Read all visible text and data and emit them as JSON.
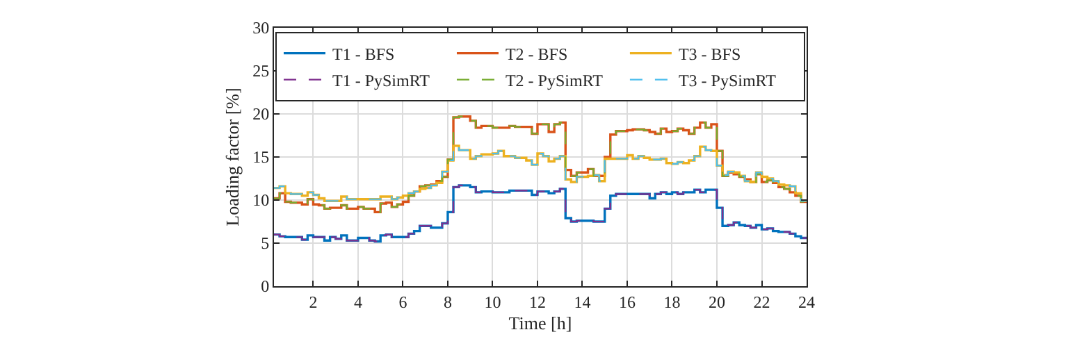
{
  "chart_data": {
    "type": "step",
    "xlabel": "Time [h]",
    "ylabel": "Loading factor [%]",
    "x": [
      0.25,
      0.5,
      0.75,
      1,
      1.25,
      1.5,
      1.75,
      2,
      2.25,
      2.5,
      2.75,
      3,
      3.25,
      3.5,
      3.75,
      4,
      4.25,
      4.5,
      4.75,
      5,
      5.25,
      5.5,
      5.75,
      6,
      6.25,
      6.5,
      6.75,
      7,
      7.25,
      7.5,
      7.75,
      8,
      8.25,
      8.5,
      8.75,
      9,
      9.25,
      9.5,
      9.75,
      10,
      10.25,
      10.5,
      10.75,
      11,
      11.25,
      11.5,
      11.75,
      12,
      12.25,
      12.5,
      12.75,
      13,
      13.25,
      13.5,
      13.75,
      14,
      14.25,
      14.5,
      14.75,
      15,
      15.25,
      15.5,
      15.75,
      16,
      16.25,
      16.5,
      16.75,
      17,
      17.25,
      17.5,
      17.75,
      18,
      18.25,
      18.5,
      18.75,
      19,
      19.25,
      19.5,
      19.75,
      20,
      20.25,
      20.5,
      20.75,
      21,
      21.25,
      21.5,
      21.75,
      22,
      22.25,
      22.5,
      22.75,
      23,
      23.25,
      23.5,
      23.75,
      24
    ],
    "series": [
      {
        "name": "T1 - BFS",
        "color": "#0072bd",
        "line_style": "solid",
        "values": [
          6.0,
          5.8,
          5.7,
          5.7,
          5.7,
          5.4,
          5.9,
          5.7,
          5.7,
          5.3,
          5.7,
          5.5,
          5.9,
          5.3,
          5.3,
          5.6,
          5.6,
          5.3,
          5.2,
          5.9,
          6.0,
          5.7,
          5.7,
          5.7,
          6.1,
          6.4,
          7.0,
          7.0,
          6.8,
          6.8,
          7.3,
          8.6,
          11.5,
          11.7,
          11.7,
          11.5,
          10.9,
          11.0,
          11.0,
          10.9,
          10.9,
          10.9,
          11.1,
          11.1,
          11.1,
          11.1,
          10.6,
          11.0,
          11.0,
          10.8,
          11.0,
          11.3,
          7.9,
          7.5,
          7.6,
          7.6,
          7.6,
          7.5,
          7.5,
          9.0,
          10.5,
          10.7,
          10.7,
          10.7,
          10.7,
          10.7,
          10.7,
          10.2,
          10.7,
          10.9,
          10.7,
          10.9,
          10.7,
          10.9,
          10.9,
          11.2,
          10.9,
          11.2,
          11.2,
          9.1,
          7.0,
          7.1,
          7.4,
          7.1,
          7.0,
          6.8,
          7.1,
          6.6,
          6.7,
          6.4,
          6.3,
          6.3,
          6.1,
          5.8,
          5.6,
          5.6
        ]
      },
      {
        "name": "T2 - BFS",
        "color": "#d95319",
        "line_style": "solid",
        "values": [
          10.2,
          10.8,
          9.8,
          9.7,
          9.7,
          9.5,
          10.1,
          9.5,
          9.4,
          9.0,
          9.1,
          9.1,
          9.4,
          9.0,
          9.0,
          9.2,
          9.0,
          9.0,
          8.6,
          9.6,
          9.7,
          9.2,
          9.5,
          9.8,
          10.5,
          11.0,
          11.6,
          11.7,
          11.8,
          12.2,
          12.7,
          14.7,
          19.6,
          19.7,
          19.7,
          19.2,
          18.4,
          18.6,
          18.6,
          18.4,
          18.4,
          18.4,
          18.6,
          18.5,
          18.5,
          18.5,
          17.7,
          18.8,
          18.8,
          17.9,
          18.8,
          19.0,
          13.5,
          12.8,
          13.2,
          13.2,
          13.6,
          12.8,
          12.8,
          15.0,
          17.6,
          18.0,
          18.0,
          18.1,
          18.2,
          18.2,
          18.1,
          17.9,
          17.7,
          18.3,
          17.9,
          18.0,
          18.3,
          18.1,
          17.7,
          18.4,
          19.0,
          18.4,
          18.8,
          15.7,
          12.8,
          13.2,
          13.0,
          12.7,
          12.4,
          12.1,
          13.0,
          12.1,
          12.3,
          12.0,
          11.5,
          11.3,
          10.9,
          10.5,
          9.8,
          9.8
        ]
      },
      {
        "name": "T3 - BFS",
        "color": "#edb120",
        "line_style": "solid",
        "values": [
          11.4,
          11.6,
          10.8,
          10.7,
          10.7,
          10.5,
          10.9,
          10.6,
          10.2,
          9.9,
          9.9,
          9.9,
          10.4,
          10.1,
          10.1,
          10.1,
          10.1,
          10.1,
          10.1,
          10.4,
          10.4,
          10.1,
          10.3,
          10.5,
          10.8,
          11.0,
          11.3,
          11.4,
          11.7,
          12.0,
          13.3,
          14.6,
          16.3,
          15.8,
          15.8,
          14.8,
          15.1,
          15.3,
          15.3,
          15.4,
          15.7,
          15.1,
          15.1,
          14.9,
          14.9,
          14.6,
          14.1,
          15.4,
          15.1,
          14.5,
          14.8,
          15.1,
          12.4,
          12.1,
          12.7,
          12.7,
          12.8,
          12.9,
          12.2,
          14.8,
          14.8,
          14.8,
          14.8,
          15.2,
          14.8,
          15.1,
          14.9,
          14.7,
          14.7,
          14.8,
          14.3,
          14.2,
          14.4,
          14.3,
          14.6,
          15.1,
          16.2,
          15.8,
          15.7,
          14.0,
          12.9,
          13.3,
          13.2,
          12.8,
          12.2,
          12.1,
          13.2,
          12.7,
          12.5,
          12.2,
          11.8,
          11.7,
          11.6,
          10.8,
          9.9,
          9.9
        ]
      },
      {
        "name": "T1 - PySimRT",
        "color": "#7e2f8e",
        "line_style": "dashed",
        "values": [
          6.0,
          5.8,
          5.7,
          5.7,
          5.7,
          5.4,
          5.9,
          5.7,
          5.7,
          5.3,
          5.7,
          5.5,
          5.9,
          5.3,
          5.3,
          5.6,
          5.6,
          5.3,
          5.2,
          5.9,
          6.0,
          5.7,
          5.7,
          5.7,
          6.1,
          6.4,
          7.0,
          7.0,
          6.8,
          6.8,
          7.3,
          8.6,
          11.5,
          11.7,
          11.7,
          11.5,
          10.9,
          11.0,
          11.0,
          10.9,
          10.9,
          10.9,
          11.1,
          11.1,
          11.1,
          11.1,
          10.6,
          11.0,
          11.0,
          10.8,
          11.0,
          11.3,
          7.9,
          7.5,
          7.6,
          7.6,
          7.6,
          7.5,
          7.5,
          9.0,
          10.5,
          10.7,
          10.7,
          10.7,
          10.7,
          10.7,
          10.7,
          10.2,
          10.7,
          10.9,
          10.7,
          10.9,
          10.7,
          10.9,
          10.9,
          11.2,
          10.9,
          11.2,
          11.2,
          9.1,
          7.0,
          7.1,
          7.4,
          7.1,
          7.0,
          6.8,
          7.1,
          6.6,
          6.7,
          6.4,
          6.3,
          6.3,
          6.1,
          5.8,
          5.6,
          5.6
        ]
      },
      {
        "name": "T2 - PySimRT",
        "color": "#77ac30",
        "line_style": "dashed",
        "values": [
          10.2,
          10.8,
          9.8,
          9.7,
          9.7,
          9.5,
          10.1,
          9.5,
          9.4,
          9.0,
          9.1,
          9.1,
          9.4,
          9.0,
          9.0,
          9.2,
          9.0,
          9.0,
          8.6,
          9.6,
          9.7,
          9.2,
          9.5,
          9.8,
          10.5,
          11.0,
          11.6,
          11.7,
          11.8,
          12.2,
          12.7,
          14.7,
          19.6,
          19.7,
          19.7,
          19.2,
          18.4,
          18.6,
          18.6,
          18.4,
          18.4,
          18.4,
          18.6,
          18.5,
          18.5,
          18.5,
          17.7,
          18.8,
          18.8,
          17.9,
          18.8,
          19.0,
          13.5,
          12.8,
          13.2,
          13.2,
          13.6,
          12.8,
          12.8,
          15.0,
          17.6,
          18.0,
          18.0,
          18.1,
          18.2,
          18.2,
          18.1,
          17.9,
          17.7,
          18.3,
          17.9,
          18.0,
          18.3,
          18.1,
          17.7,
          18.4,
          19.0,
          18.4,
          18.8,
          15.7,
          12.8,
          13.2,
          13.0,
          12.7,
          12.4,
          12.1,
          13.0,
          12.1,
          12.3,
          12.0,
          11.5,
          11.3,
          10.9,
          10.5,
          9.8,
          9.8
        ]
      },
      {
        "name": "T3 - PySimRT",
        "color": "#4dbeee",
        "line_style": "dashed",
        "values": [
          11.4,
          11.6,
          10.8,
          10.7,
          10.7,
          10.5,
          10.9,
          10.6,
          10.2,
          9.9,
          9.9,
          9.9,
          10.4,
          10.1,
          10.1,
          10.1,
          10.1,
          10.1,
          10.1,
          10.4,
          10.4,
          10.1,
          10.3,
          10.5,
          10.8,
          11.0,
          11.3,
          11.4,
          11.7,
          12.0,
          13.3,
          14.6,
          16.3,
          15.8,
          15.8,
          14.8,
          15.1,
          15.3,
          15.3,
          15.4,
          15.7,
          15.1,
          15.1,
          14.9,
          14.9,
          14.6,
          14.1,
          15.4,
          15.1,
          14.5,
          14.8,
          15.1,
          12.4,
          12.1,
          12.7,
          12.7,
          12.8,
          12.9,
          12.2,
          14.8,
          14.8,
          14.8,
          14.8,
          15.2,
          14.8,
          15.1,
          14.9,
          14.7,
          14.7,
          14.8,
          14.3,
          14.2,
          14.4,
          14.3,
          14.6,
          15.1,
          16.2,
          15.8,
          15.7,
          14.0,
          12.9,
          13.3,
          13.2,
          12.8,
          12.2,
          12.1,
          13.2,
          12.7,
          12.5,
          12.2,
          11.8,
          11.7,
          11.6,
          10.8,
          9.9,
          9.9
        ]
      }
    ],
    "xlim": [
      0.25,
      24
    ],
    "xticks": [
      2,
      4,
      6,
      8,
      10,
      12,
      14,
      16,
      18,
      20,
      22,
      24
    ],
    "ylim": [
      0,
      30
    ],
    "yticks": [
      0,
      5,
      10,
      15,
      20,
      25,
      30
    ],
    "grid": true,
    "legend": "top"
  }
}
